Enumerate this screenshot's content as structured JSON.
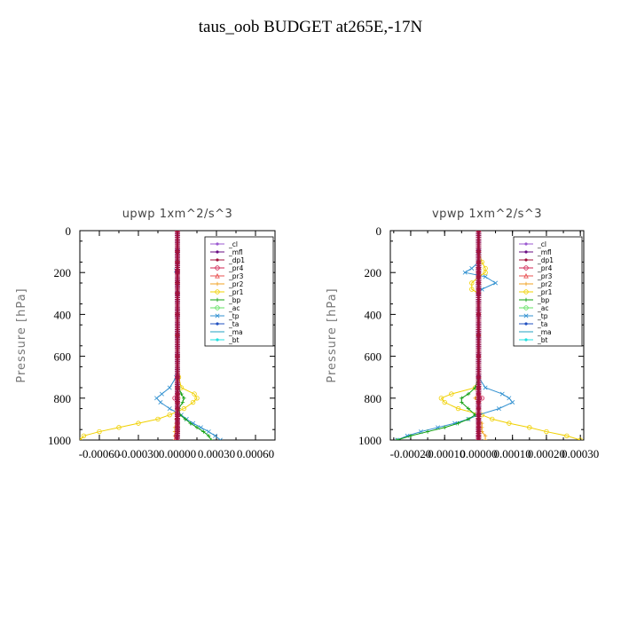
{
  "title": "taus_oob  BUDGET at265E,-17N",
  "legend_entries": [
    {
      "name": "_cl",
      "color": "#9b59d0",
      "marker": "dot"
    },
    {
      "name": "_mfl",
      "color": "#6a0d83",
      "marker": "dot"
    },
    {
      "name": "_dp1",
      "color": "#a0103a",
      "marker": "dot"
    },
    {
      "name": "_pr4",
      "color": "#d02050",
      "marker": "circle"
    },
    {
      "name": "_pr3",
      "color": "#e85050",
      "marker": "triangle"
    },
    {
      "name": "_pr2",
      "color": "#f0a020",
      "marker": "plus"
    },
    {
      "name": "_pr1",
      "color": "#f0d000",
      "marker": "circle"
    },
    {
      "name": "_bp",
      "color": "#10a010",
      "marker": "plus"
    },
    {
      "name": "_ac",
      "color": "#60e060",
      "marker": "circle"
    },
    {
      "name": "_tp",
      "color": "#3090d0",
      "marker": "x"
    },
    {
      "name": "_ta",
      "color": "#2050c0",
      "marker": "dot"
    },
    {
      "name": "_ma",
      "color": "#20a0c0",
      "marker": "dash"
    },
    {
      "name": "_bt",
      "color": "#20e0e0",
      "marker": "dot"
    }
  ],
  "chart_data": [
    {
      "type": "line",
      "title": "upwp   1xm^2/s^3",
      "ylabel": "Pressure [hPa]",
      "xlim": [
        -0.00075,
        0.00075
      ],
      "ylim": [
        1000,
        0
      ],
      "yticks": [
        0,
        200,
        400,
        600,
        800,
        1000
      ],
      "xticks": [
        -0.0006,
        -0.0003,
        0.0,
        0.0003,
        0.0006
      ],
      "xtick_labels": [
        "-0.00060",
        "-0.00030",
        "0.00000",
        "0.00030",
        "0.00060"
      ],
      "legend_position": "top-right",
      "pressure": [
        0,
        100,
        150,
        190,
        200,
        250,
        300,
        400,
        500,
        600,
        700,
        750,
        780,
        800,
        820,
        850,
        880,
        900,
        920,
        940,
        960,
        980,
        1000
      ],
      "series": [
        {
          "name": "_pr1",
          "values": [
            0,
            0,
            0,
            0,
            0,
            0,
            0,
            0,
            0,
            0,
            1e-05,
            3e-05,
            0.00013,
            0.00015,
            0.00012,
            5e-05,
            -6e-05,
            -0.00015,
            -0.0003,
            -0.00045,
            -0.0006,
            -0.00072,
            -0.00075
          ]
        },
        {
          "name": "_tp",
          "values": [
            0,
            0,
            0,
            -1e-05,
            0,
            0,
            0,
            0,
            0,
            0,
            -1e-05,
            -6e-05,
            -0.00012,
            -0.00016,
            -0.00013,
            -6e-05,
            3e-05,
            7e-05,
            0.00012,
            0.00018,
            0.00024,
            0.00029,
            0.00033
          ]
        },
        {
          "name": "_bp",
          "values": [
            0,
            0,
            0,
            0,
            0,
            0,
            0,
            0,
            0,
            0,
            0,
            1e-05,
            3e-05,
            5e-05,
            4e-05,
            1e-05,
            2e-05,
            6e-05,
            0.0001,
            0.00015,
            0.0002,
            0.00024,
            0.00026
          ]
        },
        {
          "name": "_pr2",
          "values": [
            0,
            0,
            0,
            0,
            0,
            0,
            0,
            0,
            0,
            0,
            0,
            0,
            0,
            1e-05,
            0,
            0,
            0,
            -1e-05,
            -1e-05,
            -2e-05,
            -2e-05,
            -2e-05,
            -2e-05
          ]
        },
        {
          "name": "_pr4",
          "values": [
            0,
            0,
            0,
            0,
            0,
            0,
            0,
            0,
            0,
            0,
            0,
            0,
            0,
            -2e-05,
            0,
            0,
            0,
            0,
            0,
            0,
            0,
            -1e-05,
            -1e-05
          ]
        },
        {
          "name": "_cl",
          "values": [
            0,
            0,
            0,
            0,
            0,
            0,
            0,
            0,
            0,
            0,
            0,
            0,
            0,
            0,
            0,
            0,
            0,
            0,
            0,
            0,
            0,
            0,
            0
          ]
        },
        {
          "name": "_mfl",
          "values": [
            0,
            0,
            0,
            0,
            0,
            0,
            0,
            0,
            0,
            0,
            0,
            0,
            0,
            0,
            0,
            0,
            0,
            0,
            0,
            0,
            0,
            0,
            0
          ]
        },
        {
          "name": "_dp1",
          "values": [
            0,
            0,
            0,
            0,
            0,
            0,
            0,
            0,
            0,
            0,
            0,
            0,
            0,
            0,
            0,
            0,
            0,
            0,
            0,
            0,
            0,
            0,
            0
          ]
        }
      ]
    },
    {
      "type": "line",
      "title": "vpwp   1xm^2/s^3",
      "ylabel": "Pressure [hPa]",
      "xlim": [
        -0.00026,
        0.00031
      ],
      "ylim": [
        1000,
        0
      ],
      "yticks": [
        0,
        200,
        400,
        600,
        800,
        1000
      ],
      "xticks": [
        -0.0002,
        -0.0001,
        0.0,
        0.0001,
        0.0002,
        0.0003
      ],
      "xtick_labels": [
        "-0.00020",
        "-0.00010",
        "0.00000",
        "0.00010",
        "0.00020",
        "0.00030"
      ],
      "legend_position": "top-right",
      "pressure": [
        0,
        100,
        150,
        180,
        200,
        220,
        250,
        280,
        300,
        400,
        500,
        600,
        700,
        750,
        780,
        800,
        820,
        850,
        880,
        900,
        920,
        940,
        960,
        980,
        1000
      ],
      "series": [
        {
          "name": "_pr1",
          "values": [
            0,
            0,
            1e-05,
            2e-05,
            2e-05,
            0,
            -2e-05,
            -2e-05,
            0,
            0,
            0,
            0,
            0,
            -1e-05,
            -8e-05,
            -0.00011,
            -0.0001,
            -6e-05,
            1e-05,
            4e-05,
            9e-05,
            0.00015,
            0.0002,
            0.00026,
            0.0003
          ]
        },
        {
          "name": "_tp",
          "values": [
            0,
            0,
            0,
            -2e-05,
            -4e-05,
            2e-05,
            5e-05,
            1e-05,
            0,
            0,
            0,
            0,
            0,
            2e-05,
            7e-05,
            9e-05,
            0.0001,
            6e-05,
            0,
            -3e-05,
            -7e-05,
            -0.00012,
            -0.00017,
            -0.00021,
            -0.00024
          ]
        },
        {
          "name": "_bp",
          "values": [
            0,
            0,
            0,
            0,
            0,
            0,
            0,
            0,
            0,
            0,
            0,
            0,
            0,
            -1e-05,
            -3e-05,
            -5e-05,
            -5e-05,
            -3e-05,
            -1e-05,
            -3e-05,
            -6e-05,
            -0.0001,
            -0.00015,
            -0.0002,
            -0.00024
          ]
        },
        {
          "name": "_pr2",
          "values": [
            0,
            0,
            0,
            0,
            0,
            0,
            0,
            0,
            0,
            0,
            0,
            0,
            0,
            0,
            0,
            -1e-05,
            0,
            0,
            0,
            0,
            1e-05,
            1e-05,
            1e-05,
            2e-05,
            2e-05
          ]
        },
        {
          "name": "_pr4",
          "values": [
            0,
            0,
            0,
            0,
            0,
            0,
            0,
            0,
            0,
            0,
            0,
            0,
            0,
            0,
            0,
            1e-05,
            0,
            0,
            0,
            0,
            0,
            0,
            0,
            0,
            0
          ]
        },
        {
          "name": "_cl",
          "values": [
            0,
            0,
            0,
            0,
            0,
            0,
            0,
            0,
            0,
            0,
            0,
            0,
            0,
            0,
            0,
            0,
            0,
            0,
            0,
            0,
            0,
            0,
            0,
            0,
            0
          ]
        },
        {
          "name": "_mfl",
          "values": [
            0,
            0,
            0,
            0,
            0,
            0,
            0,
            0,
            0,
            0,
            0,
            0,
            0,
            0,
            0,
            0,
            0,
            0,
            0,
            0,
            0,
            0,
            0,
            0,
            0
          ]
        },
        {
          "name": "_dp1",
          "values": [
            0,
            0,
            0,
            0,
            0,
            0,
            0,
            0,
            0,
            0,
            0,
            0,
            0,
            0,
            0,
            0,
            0,
            0,
            0,
            0,
            0,
            0,
            0,
            0,
            0
          ]
        }
      ]
    }
  ]
}
